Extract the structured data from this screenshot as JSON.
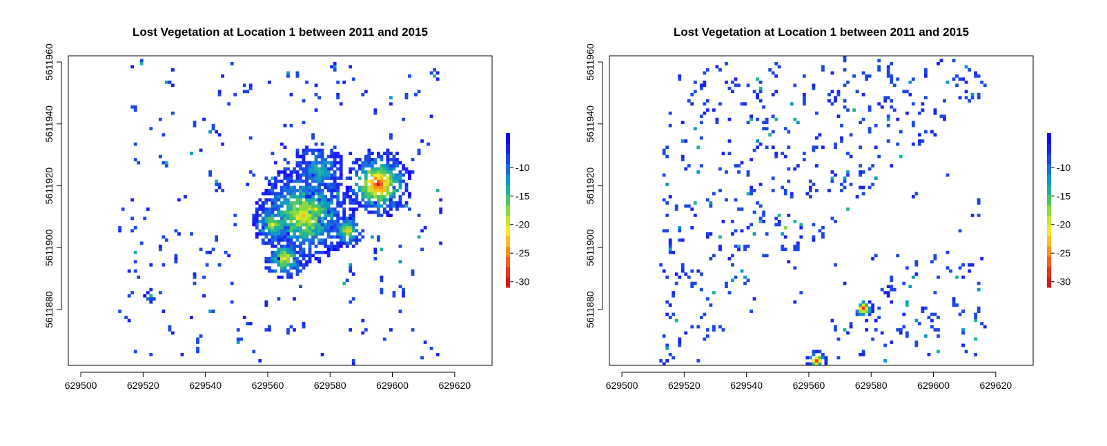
{
  "palette": [
    "#d7191c",
    "#e8341a",
    "#f4611b",
    "#f9921d",
    "#fcbf1e",
    "#fde724",
    "#c9e62d",
    "#8cd83d",
    "#4dc563",
    "#1fb39b",
    "#0d99c8",
    "#1a6fdc",
    "#1b47e8",
    "#1a23f0",
    "#1500ff"
  ],
  "chart_data": [
    {
      "type": "heatmap",
      "title": "Lost Vegetation at Location 1 between 2011 and 2015",
      "xlabel": "",
      "ylabel": "",
      "xlim": [
        629496,
        629632
      ],
      "ylim": [
        5611862,
        5611962
      ],
      "x_ticks": [
        "629500",
        "629520",
        "629540",
        "629560",
        "629580",
        "629600",
        "629620"
      ],
      "y_ticks": [
        "5611880",
        "5611900",
        "5611920",
        "5611940",
        "5611960"
      ],
      "x_tick_values": [
        629500,
        629520,
        629540,
        629560,
        629580,
        629600,
        629620
      ],
      "y_tick_values": [
        5611880,
        5611900,
        5611920,
        5611940,
        5611960
      ],
      "colorbar": {
        "ticks": [
          "-10",
          "-15",
          "-20",
          "-25",
          "-30"
        ],
        "tick_values": [
          -10,
          -15,
          -20,
          -25,
          -30
        ],
        "range": [
          -31,
          -4
        ]
      },
      "clusters": [
        {
          "x": 629571,
          "y": 5611910,
          "r": 12,
          "min": -22
        },
        {
          "x": 629561,
          "y": 5611907,
          "r": 5,
          "min": -20
        },
        {
          "x": 629575,
          "y": 5611912,
          "r": 4,
          "min": -21
        },
        {
          "x": 629565,
          "y": 5611896,
          "r": 5,
          "min": -22
        },
        {
          "x": 629585,
          "y": 5611905,
          "r": 4,
          "min": -22
        },
        {
          "x": 629595,
          "y": 5611920,
          "r": 8,
          "min": -30
        },
        {
          "x": 629576,
          "y": 5611925,
          "r": 6,
          "min": -15
        },
        {
          "x": 629522,
          "y": 5611884,
          "r": 1.5,
          "min": -14
        }
      ],
      "scatter": {
        "seed": 11,
        "count": 260,
        "xmin": 629512,
        "xmax": 629616,
        "ymin": 5611863,
        "ymax": 5611961
      }
    },
    {
      "type": "heatmap",
      "title": "Lost Vegetation at Location 1 between 2011 and 2015",
      "xlabel": "",
      "ylabel": "",
      "xlim": [
        629496,
        629632
      ],
      "ylim": [
        5611862,
        5611962
      ],
      "x_ticks": [
        "629500",
        "629520",
        "629540",
        "629560",
        "629580",
        "629600",
        "629620"
      ],
      "y_ticks": [
        "5611880",
        "5611900",
        "5611920",
        "5611940",
        "5611960"
      ],
      "x_tick_values": [
        629500,
        629520,
        629540,
        629560,
        629580,
        629600,
        629620
      ],
      "y_tick_values": [
        5611880,
        5611900,
        5611920,
        5611940,
        5611960
      ],
      "colorbar": {
        "ticks": [
          "-10",
          "-15",
          "-20",
          "-25",
          "-30"
        ],
        "tick_values": [
          -10,
          -15,
          -20,
          -25,
          -30
        ],
        "range": [
          -31,
          -4
        ]
      },
      "clusters": [
        {
          "x": 629577,
          "y": 5611880,
          "r": 2.5,
          "min": -30
        },
        {
          "x": 629562,
          "y": 5611863,
          "r": 2.5,
          "min": -29
        },
        {
          "x": 629552,
          "y": 5611906,
          "r": 1,
          "min": -18
        }
      ],
      "scatter": {
        "seed": 29,
        "count": 620,
        "xmin": 629512,
        "xmax": 629616,
        "ymin": 5611863,
        "ymax": 5611961,
        "exclude_diagonal": true
      }
    }
  ]
}
